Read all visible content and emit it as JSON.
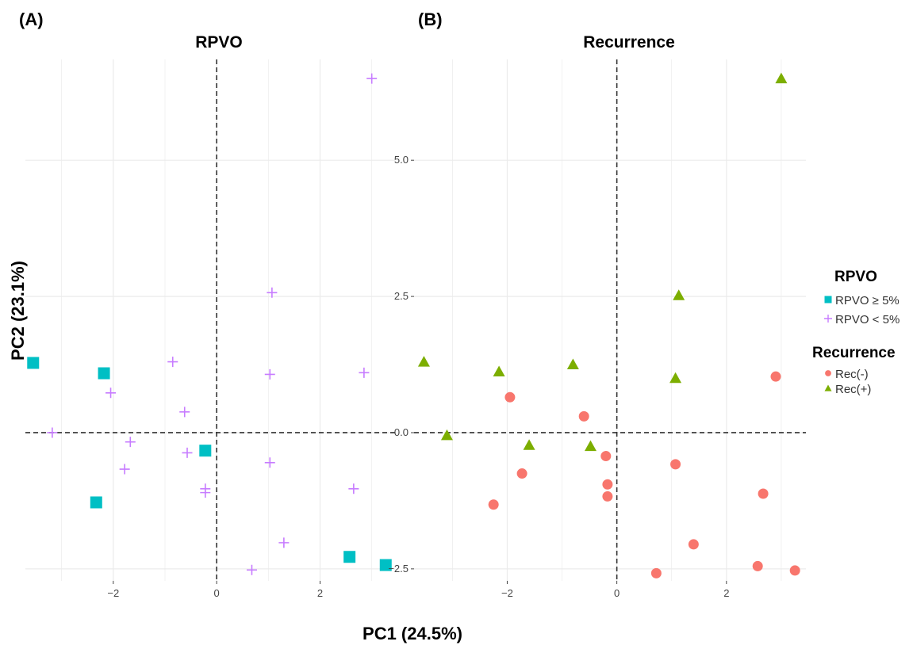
{
  "chart_data": [
    {
      "type": "scatter",
      "panel_letter": "(A)",
      "title": "RPVO",
      "xlabel": "PC1 (24.5%)",
      "ylabel": "PC2 (23.1%)",
      "xlim": [
        -3.7,
        3.45
      ],
      "ylim": [
        -2.72,
        6.85
      ],
      "x_ticks": [
        -2,
        0,
        2
      ],
      "x_tick_labels": [
        "−2",
        "0",
        "2"
      ],
      "y_ticks": [],
      "y_tick_labels": [],
      "y_gridlines": [
        -2.5,
        0,
        2.5,
        5
      ],
      "grid": true,
      "reference_lines": {
        "x": 0,
        "y": 0
      },
      "series": [
        {
          "name": "RPVO ≥ 5%",
          "marker": "square",
          "color": "#00BFC4",
          "x": [
            -3.55,
            -2.18,
            -0.22,
            -2.33,
            2.57,
            3.27
          ],
          "y": [
            1.28,
            1.09,
            -0.33,
            -1.28,
            -2.28,
            -2.43
          ]
        },
        {
          "name": "RPVO < 5%",
          "marker": "plus",
          "color": "#C77CFF",
          "x": [
            3.0,
            1.07,
            -0.85,
            1.03,
            2.85,
            -2.05,
            -0.62,
            -3.18,
            -1.67,
            -0.57,
            1.03,
            -1.78,
            -0.22,
            -0.22,
            2.65,
            1.3,
            0.68
          ],
          "y": [
            6.5,
            2.57,
            1.3,
            1.07,
            1.1,
            0.73,
            0.38,
            0.0,
            -0.17,
            -0.37,
            -0.55,
            -0.67,
            -1.03,
            -1.1,
            -1.03,
            -2.02,
            -2.52
          ]
        }
      ]
    },
    {
      "type": "scatter",
      "panel_letter": "(B)",
      "title": "Recurrence",
      "xlabel": "PC1 (24.5%)",
      "ylabel": "PC2 (23.1%)",
      "xlim": [
        -3.7,
        3.45
      ],
      "ylim": [
        -2.72,
        6.85
      ],
      "x_ticks": [
        -2,
        0,
        2
      ],
      "x_tick_labels": [
        "−2",
        "0",
        "2"
      ],
      "y_ticks": [
        -2.5,
        0,
        2.5,
        5
      ],
      "y_tick_labels": [
        "−2.5",
        "0.0",
        "2.5",
        "5.0"
      ],
      "y_gridlines": [
        -2.5,
        0,
        2.5,
        5
      ],
      "grid": true,
      "reference_lines": {
        "x": 0,
        "y": 0
      },
      "series": [
        {
          "name": "Rec(-)",
          "marker": "circle",
          "color": "#F8766D",
          "x": [
            2.9,
            -1.95,
            -0.6,
            -0.2,
            1.07,
            -1.73,
            -0.17,
            -0.17,
            -2.25,
            2.67,
            1.4,
            2.57,
            3.25,
            0.72
          ],
          "y": [
            1.03,
            0.65,
            0.3,
            -0.43,
            -0.58,
            -0.75,
            -0.95,
            -1.17,
            -1.32,
            -1.12,
            -2.05,
            -2.45,
            -2.53,
            -2.58
          ]
        },
        {
          "name": "Rec(+)",
          "marker": "triangle",
          "color": "#7CAE00",
          "x": [
            3.0,
            1.13,
            1.07,
            -3.52,
            -2.15,
            -0.8,
            -3.1,
            -1.6,
            -0.48
          ],
          "y": [
            6.5,
            2.52,
            1.0,
            1.3,
            1.12,
            1.25,
            -0.05,
            -0.23,
            -0.25
          ]
        }
      ]
    }
  ],
  "legend": {
    "placement": "right",
    "groups": [
      {
        "title": "RPVO",
        "items": [
          {
            "label": "RPVO ≥ 5%",
            "marker": "square",
            "color": "#00BFC4"
          },
          {
            "label": "RPVO < 5%",
            "marker": "plus",
            "color": "#C77CFF"
          }
        ]
      },
      {
        "title": "Recurrence",
        "items": [
          {
            "label": "Rec(-)",
            "marker": "circle",
            "color": "#F8766D"
          },
          {
            "label": "Rec(+)",
            "marker": "triangle",
            "color": "#7CAE00"
          }
        ]
      }
    ]
  },
  "colors": {
    "grid": "#ebebeb",
    "reference_line": "#333333",
    "tick_text": "#444444"
  }
}
